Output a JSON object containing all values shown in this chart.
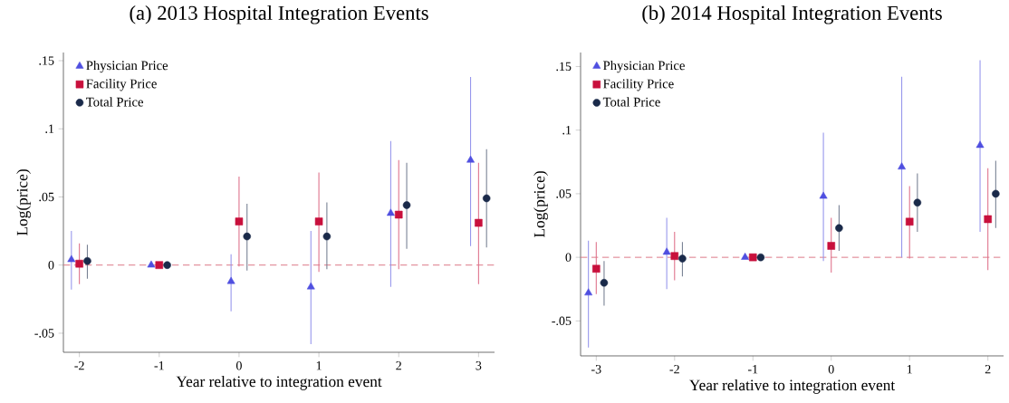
{
  "chart_data": [
    {
      "type": "scatter",
      "title": "(a) 2013 Hospital Integration Events",
      "xlabel": "Year relative to integration event",
      "ylabel": "Log(price)",
      "xlim": [
        -2.2,
        3.2
      ],
      "ylim": [
        -0.064,
        0.156
      ],
      "xticks": [
        -2,
        -1,
        0,
        1,
        2,
        3
      ],
      "yticks": [
        {
          "value": -0.05,
          "label": "-.05"
        },
        0,
        {
          "value": 0.05,
          "label": ".05"
        },
        {
          "value": 0.1,
          "label": ".1"
        },
        {
          "value": 0.15,
          "label": ".15"
        }
      ],
      "legend": "top left",
      "ref_lines": [
        {
          "axis": "y",
          "value": 0,
          "color": "#d9707f",
          "line_style": "dashed"
        }
      ],
      "series": [
        {
          "name": "Physician Price",
          "color": "#4f4fe0",
          "marker": "triangle",
          "x": [
            -2.1,
            -1.1,
            -0.1,
            0.9,
            1.9,
            2.9
          ],
          "values": [
            0.004,
            0,
            -0.012,
            -0.016,
            0.038,
            0.077
          ],
          "errors": [
            [
              -0.018,
              0.025
            ],
            null,
            [
              -0.034,
              0.008
            ],
            [
              -0.058,
              0.025
            ],
            [
              -0.016,
              0.091
            ],
            [
              0.014,
              0.138
            ]
          ]
        },
        {
          "name": "Facility Price",
          "color": "#c8103c",
          "marker": "square",
          "x": [
            -2,
            -1,
            0,
            1,
            2,
            3
          ],
          "values": [
            0.001,
            0,
            0.032,
            0.032,
            0.037,
            0.031
          ],
          "errors": [
            [
              -0.014,
              0.016
            ],
            null,
            [
              -0.001,
              0.065
            ],
            [
              -0.005,
              0.068
            ],
            [
              -0.003,
              0.077
            ],
            [
              -0.014,
              0.075
            ]
          ]
        },
        {
          "name": "Total Price",
          "color": "#1a2a4a",
          "marker": "circle",
          "x": [
            -1.9,
            -0.9,
            0.1,
            1.1,
            2.1,
            3.1
          ],
          "values": [
            0.003,
            0,
            0.021,
            0.021,
            0.044,
            0.049
          ],
          "errors": [
            [
              -0.01,
              0.015
            ],
            null,
            [
              -0.004,
              0.045
            ],
            [
              -0.003,
              0.046
            ],
            [
              0.012,
              0.075
            ],
            [
              0.013,
              0.085
            ]
          ]
        }
      ]
    },
    {
      "type": "scatter",
      "title": "(b) 2014 Hospital Integration Events",
      "xlabel": "Year relative to integration event",
      "ylabel": "Log(price)",
      "xlim": [
        -3.2,
        2.2
      ],
      "ylim": [
        -0.0775,
        0.161
      ],
      "xticks": [
        -3,
        -2,
        -1,
        0,
        1,
        2
      ],
      "yticks": [
        {
          "value": -0.05,
          "label": "-.05"
        },
        0,
        {
          "value": 0.05,
          "label": ".05"
        },
        {
          "value": 0.1,
          "label": ".1"
        },
        {
          "value": 0.15,
          "label": ".15"
        }
      ],
      "legend": "top left",
      "ref_lines": [
        {
          "axis": "y",
          "value": 0,
          "color": "#d9707f",
          "line_style": "dashed"
        }
      ],
      "series": [
        {
          "name": "Physician Price",
          "color": "#4f4fe0",
          "marker": "triangle",
          "x": [
            -3.1,
            -2.1,
            -1.1,
            -0.1,
            0.9,
            1.9
          ],
          "values": [
            -0.028,
            0.004,
            0,
            0.048,
            0.071,
            0.088
          ],
          "errors": [
            [
              -0.071,
              0.013
            ],
            [
              -0.025,
              0.031
            ],
            null,
            [
              -0.003,
              0.098
            ],
            [
              0,
              0.142
            ],
            [
              0.02,
              0.155
            ]
          ]
        },
        {
          "name": "Facility Price",
          "color": "#c8103c",
          "marker": "square",
          "x": [
            -3,
            -2,
            -1,
            0,
            1,
            2
          ],
          "values": [
            -0.009,
            0.001,
            0,
            0.009,
            0.028,
            0.03
          ],
          "errors": [
            [
              -0.029,
              0.012
            ],
            [
              -0.018,
              0.02
            ],
            null,
            [
              -0.012,
              0.031
            ],
            [
              -0.001,
              0.056
            ],
            [
              -0.01,
              0.07
            ]
          ]
        },
        {
          "name": "Total Price",
          "color": "#1a2a4a",
          "marker": "circle",
          "x": [
            -2.9,
            -1.9,
            -0.9,
            0.1,
            1.1,
            2.1
          ],
          "values": [
            -0.02,
            -0.001,
            0,
            0.023,
            0.043,
            0.05
          ],
          "errors": [
            [
              -0.038,
              -0.003
            ],
            [
              -0.015,
              0.012
            ],
            null,
            [
              0.005,
              0.041
            ],
            [
              0.02,
              0.066
            ],
            [
              0.023,
              0.076
            ]
          ]
        }
      ]
    }
  ]
}
